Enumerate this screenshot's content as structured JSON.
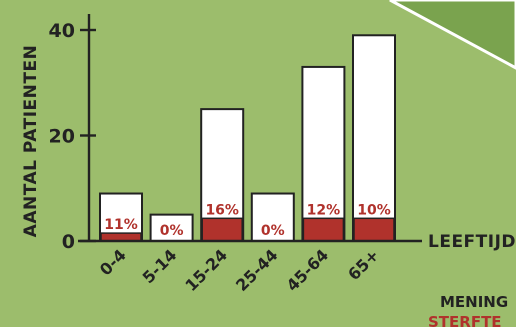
{
  "chart_data": {
    "type": "bar",
    "ylabel": "AANTAL PATIENTEN",
    "xlabel": "LEEFTIJD",
    "ylim": [
      0,
      45
    ],
    "yticks": [
      0,
      20,
      40
    ],
    "categories": [
      "0-4",
      "5-14",
      "15-24",
      "25-44",
      "45-64",
      "65+"
    ],
    "series": [
      {
        "name": "",
        "values": [
          9,
          5,
          25,
          9,
          33,
          39
        ]
      },
      {
        "name": "",
        "values": [
          1.5,
          0,
          4.3,
          0,
          4.3,
          4.3
        ]
      }
    ],
    "percent_labels": [
      "11%",
      "0%",
      "16%",
      "0%",
      "12%",
      "10%"
    ],
    "colors": {
      "bar": "#ffffff",
      "highlight": "#b0322c",
      "background": "#9cbd6c",
      "panel": "#7aa34e"
    }
  },
  "corner": {
    "line1": "MENING",
    "line2": "STERFTE"
  }
}
